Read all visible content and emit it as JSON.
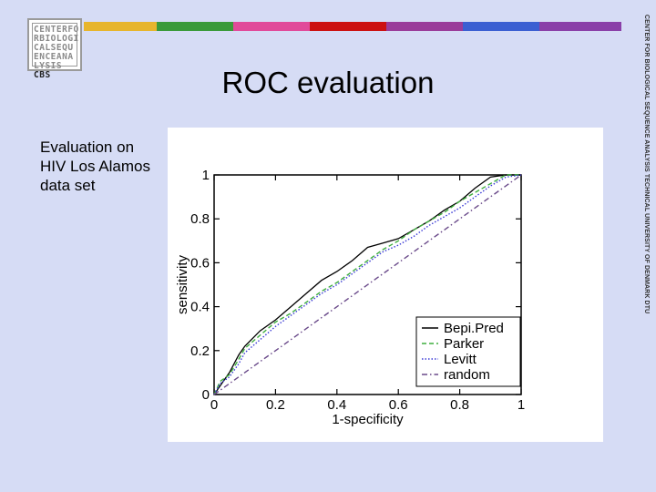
{
  "slide": {
    "title": "ROC evaluation",
    "body_text": "Evaluation on HIV Los Alamos data set",
    "side_banner": "CENTER FOR BIOLOGICAL SEQUENCE ANALYSIS TECHNICAL UNIVERSITY OF DENMARK DTU",
    "logo_lines": [
      "CENTERFO",
      "RBIOLOGI",
      "CALSEQU",
      "ENCEANA",
      "LYSIS"
    ],
    "logo_badge": "CBS",
    "color_bar": [
      "#e7b52c",
      "#3a9a3a",
      "#e14a9a",
      "#cc1111",
      "#9a3c9a",
      "#3b5fd2",
      "#8a3fa8"
    ]
  },
  "chart_data": {
    "type": "line",
    "xlabel": "1-specificity",
    "ylabel": "sensitivity",
    "xlim": [
      0,
      1
    ],
    "ylim": [
      0,
      1
    ],
    "xticks": [
      0,
      0.2,
      0.4,
      0.6,
      0.8,
      1
    ],
    "xtick_labels": [
      "0",
      "0.2",
      "0.4",
      "0.6",
      "0.8",
      "1"
    ],
    "yticks": [
      0,
      0.2,
      0.4,
      0.6,
      0.8,
      1
    ],
    "ytick_labels": [
      "0",
      "0.2",
      "0.4",
      "0.6",
      "0.8",
      "1"
    ],
    "legend_position": "bottom-right",
    "series": [
      {
        "name": "Bepi.Pred",
        "color": "#000000",
        "dash": "solid",
        "x": [
          0,
          0.02,
          0.05,
          0.08,
          0.1,
          0.15,
          0.2,
          0.25,
          0.3,
          0.35,
          0.4,
          0.45,
          0.5,
          0.55,
          0.6,
          0.65,
          0.7,
          0.75,
          0.8,
          0.85,
          0.9,
          0.95,
          1
        ],
        "y": [
          0,
          0.04,
          0.1,
          0.18,
          0.22,
          0.29,
          0.34,
          0.4,
          0.46,
          0.52,
          0.56,
          0.61,
          0.67,
          0.69,
          0.71,
          0.75,
          0.79,
          0.84,
          0.88,
          0.94,
          0.99,
          1,
          1
        ]
      },
      {
        "name": "Parker",
        "color": "#3fae3f",
        "dash": "dashed",
        "x": [
          0,
          0.02,
          0.05,
          0.08,
          0.1,
          0.15,
          0.2,
          0.25,
          0.3,
          0.35,
          0.4,
          0.45,
          0.5,
          0.55,
          0.6,
          0.65,
          0.7,
          0.75,
          0.8,
          0.85,
          0.9,
          0.95,
          1
        ],
        "y": [
          0,
          0.06,
          0.09,
          0.16,
          0.21,
          0.27,
          0.33,
          0.37,
          0.42,
          0.47,
          0.51,
          0.56,
          0.61,
          0.66,
          0.7,
          0.75,
          0.79,
          0.83,
          0.88,
          0.92,
          0.96,
          1,
          1
        ]
      },
      {
        "name": "Levitt",
        "color": "#3a3ad6",
        "dash": "dotted",
        "x": [
          0,
          0.02,
          0.05,
          0.08,
          0.1,
          0.15,
          0.2,
          0.25,
          0.3,
          0.35,
          0.4,
          0.45,
          0.5,
          0.55,
          0.6,
          0.65,
          0.7,
          0.75,
          0.8,
          0.85,
          0.9,
          0.95,
          1
        ],
        "y": [
          0,
          0.05,
          0.08,
          0.14,
          0.19,
          0.25,
          0.31,
          0.36,
          0.41,
          0.46,
          0.5,
          0.55,
          0.6,
          0.65,
          0.68,
          0.72,
          0.77,
          0.81,
          0.85,
          0.9,
          0.95,
          0.99,
          1
        ]
      },
      {
        "name": "random",
        "color": "#6a4a8a",
        "dash": "dashdot",
        "x": [
          0,
          1
        ],
        "y": [
          0,
          1
        ]
      }
    ]
  }
}
